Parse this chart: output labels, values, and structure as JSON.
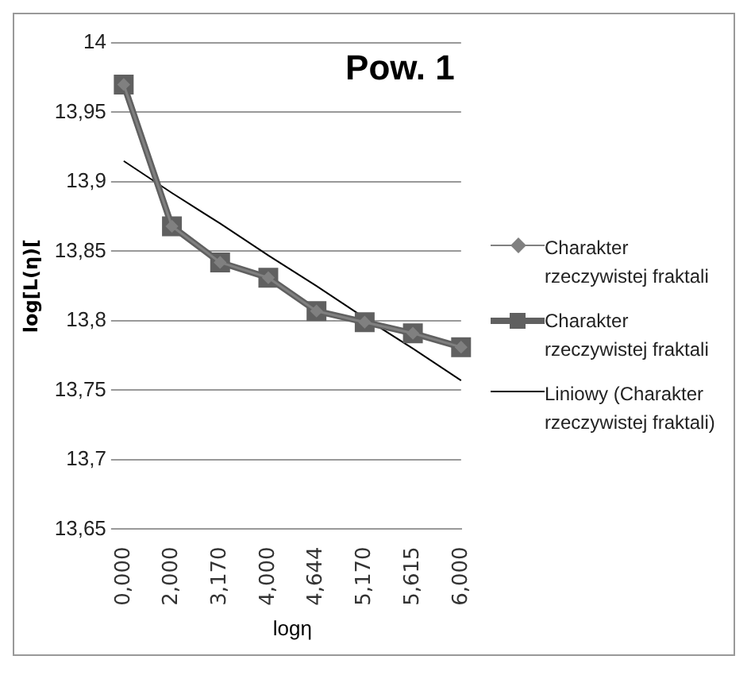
{
  "chart_data": {
    "type": "line",
    "title": "Pow. 1",
    "xlabel": "logη",
    "ylabel": "log[L(η)[",
    "categories": [
      "0,000",
      "2,000",
      "3,170",
      "4,000",
      "4,644",
      "5,170",
      "5,615",
      "6,000"
    ],
    "series": [
      {
        "name": "Charakter rzeczywistej fraktali",
        "color": "#808080",
        "marker": "diamond",
        "values": [
          13.97,
          13.868,
          13.842,
          13.831,
          13.807,
          13.799,
          13.791,
          13.781
        ]
      },
      {
        "name": "Charakter rzeczywistej fraktali",
        "color": "#606060",
        "marker": "square",
        "values": [
          13.97,
          13.868,
          13.842,
          13.831,
          13.807,
          13.799,
          13.791,
          13.781
        ]
      },
      {
        "name": "Liniowy (Charakter rzeczywistej fraktali)",
        "color": "#000000",
        "marker": "none",
        "values": [
          13.915,
          13.892,
          13.87,
          13.847,
          13.825,
          13.802,
          13.78,
          13.757
        ]
      }
    ],
    "ylim": [
      13.65,
      14
    ],
    "yticks": [
      {
        "value": 13.65,
        "label": "13,65"
      },
      {
        "value": 13.7,
        "label": "13,7"
      },
      {
        "value": 13.75,
        "label": "13,75"
      },
      {
        "value": 13.8,
        "label": "13,8"
      },
      {
        "value": 13.85,
        "label": "13,85"
      },
      {
        "value": 13.9,
        "label": "13,9"
      },
      {
        "value": 13.95,
        "label": "13,95"
      },
      14
    ],
    "grid": "y",
    "legend": "right"
  }
}
